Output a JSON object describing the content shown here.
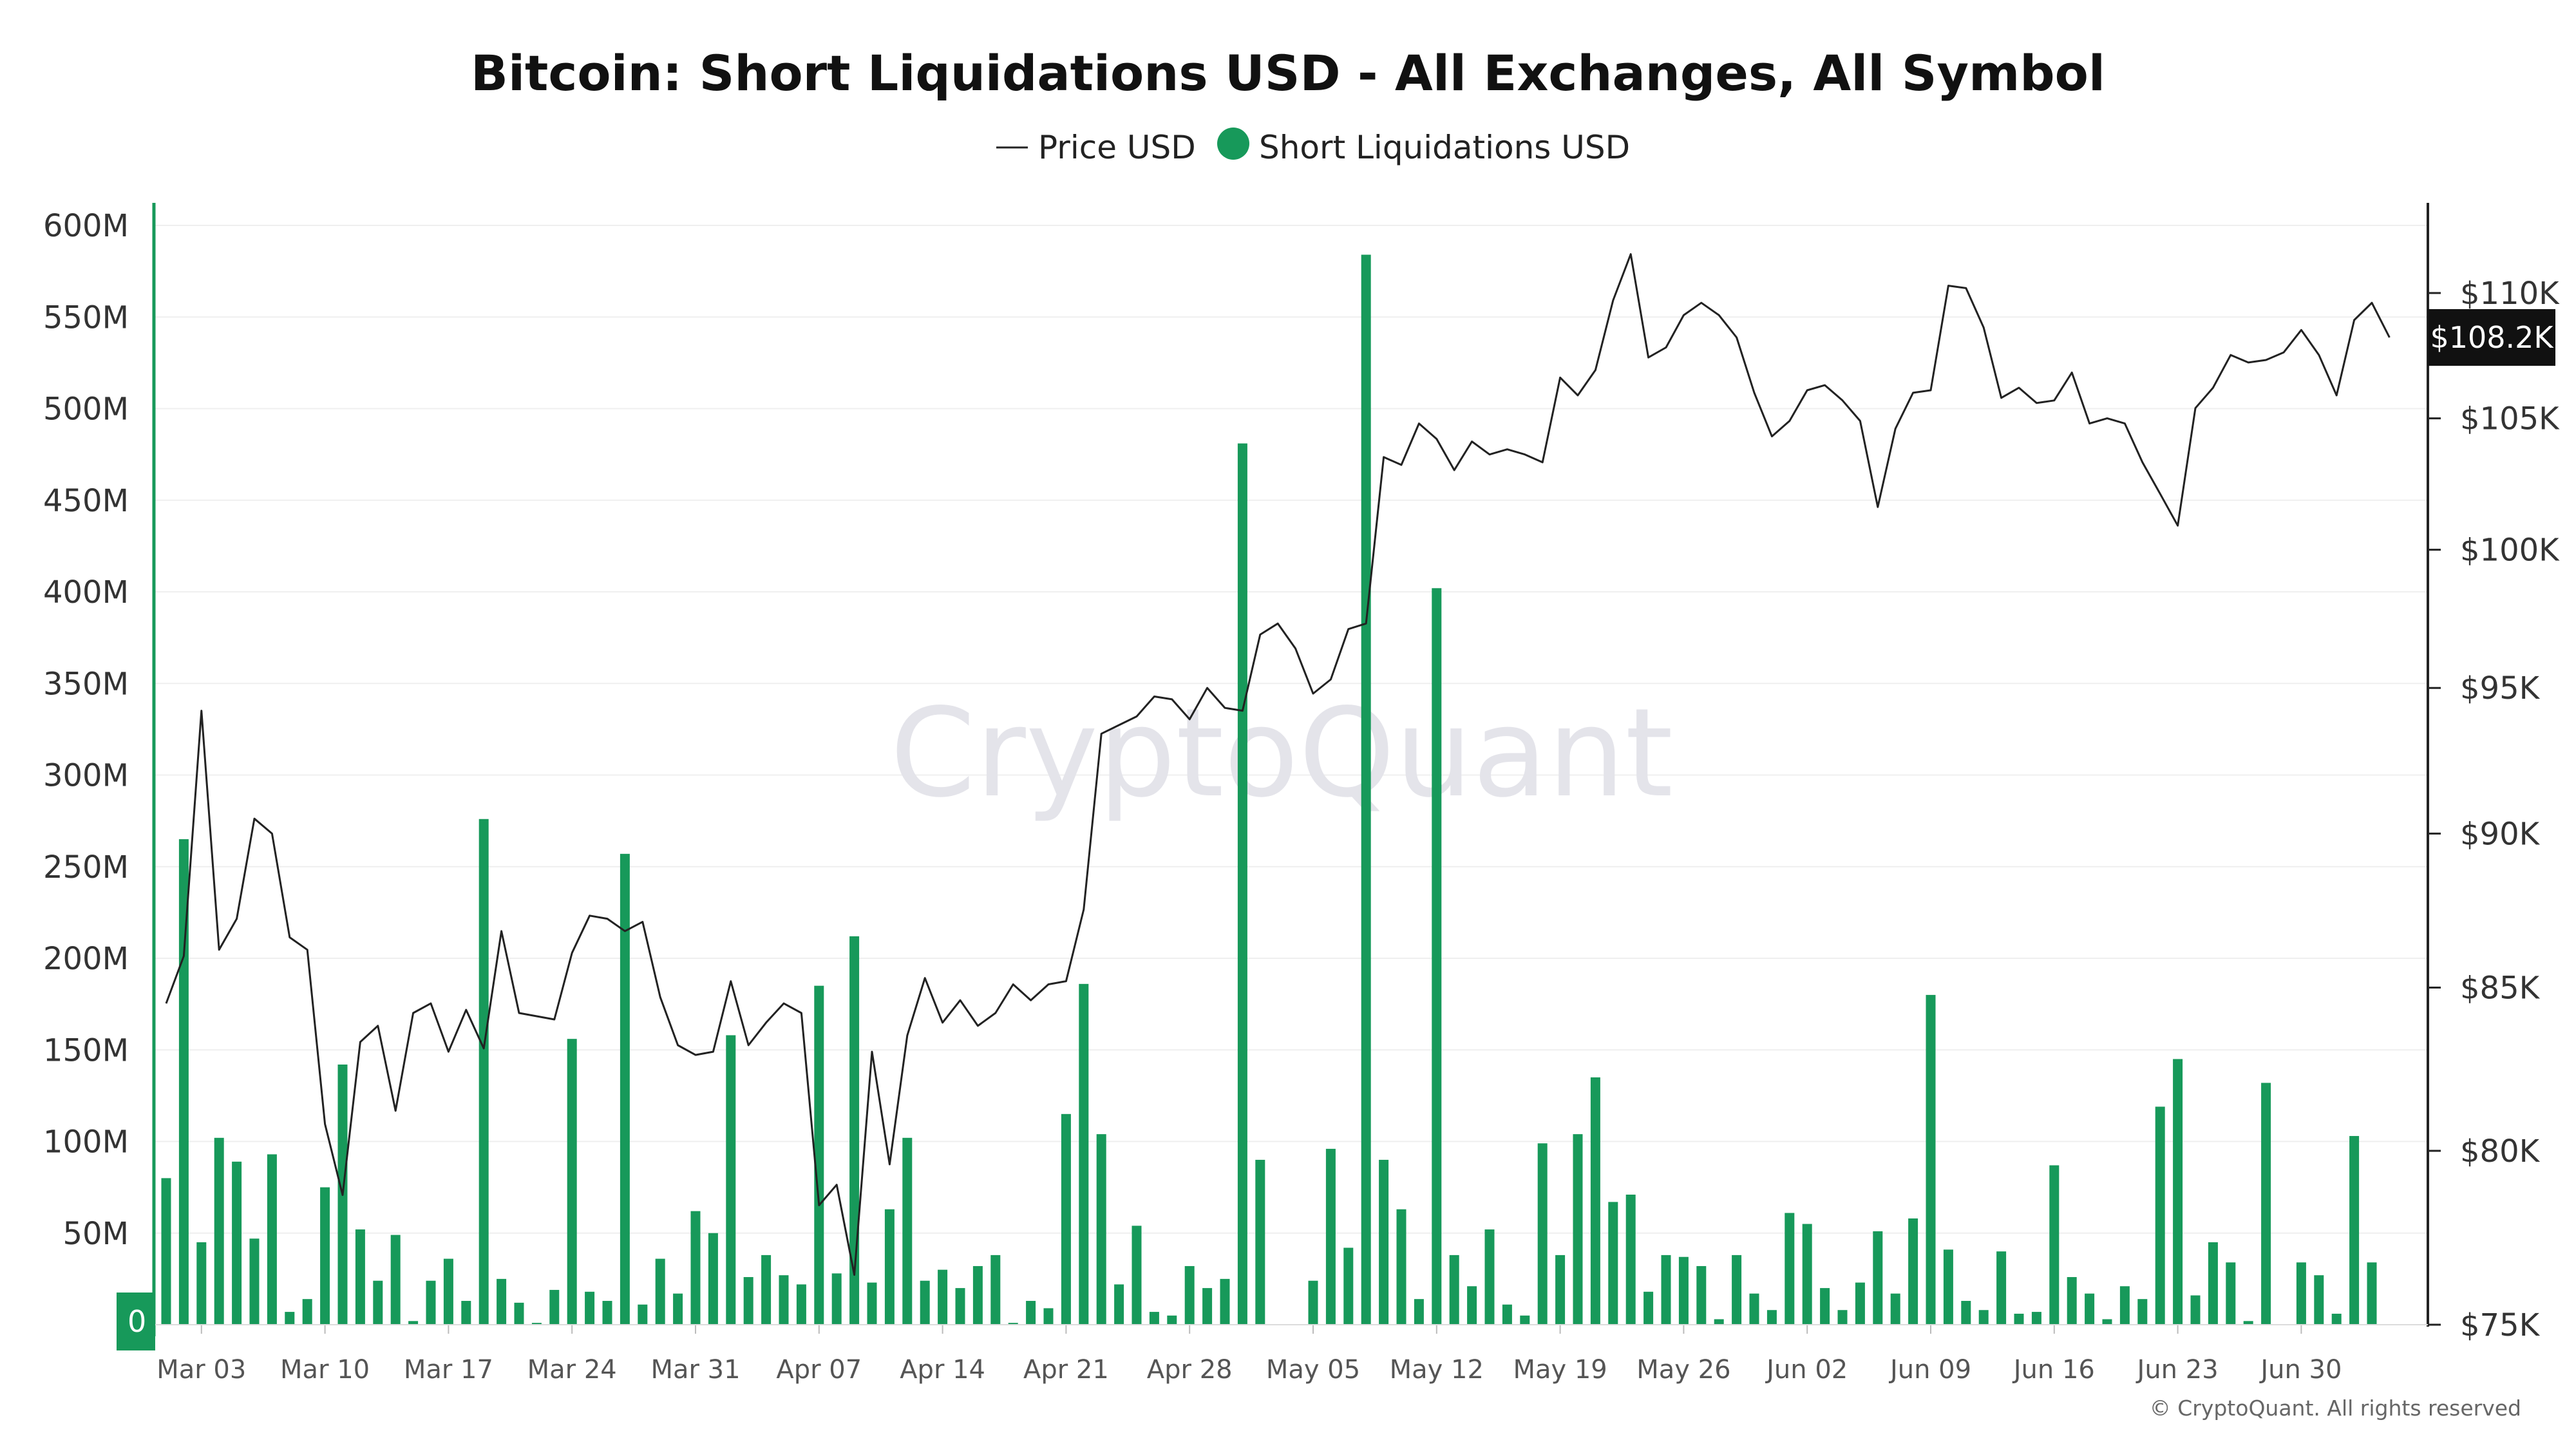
{
  "chart_data": {
    "type": "bar",
    "title": "Bitcoin: Short Liquidations USD - All Exchanges, All Symbol",
    "legend": {
      "placement": "top-center",
      "entries": [
        {
          "label": "Price USD",
          "marker": "line",
          "color": "#222222"
        },
        {
          "label": "Short Liquidations USD",
          "marker": "dot",
          "color": "#17995a"
        }
      ]
    },
    "colors": {
      "bars": "#17995a",
      "price_line": "#222222",
      "left_axis": "#17995a",
      "right_axis": "#222222"
    },
    "x_start_date": "Mar 01",
    "x_ticks": [
      "Mar 03",
      "Mar 10",
      "Mar 17",
      "Mar 24",
      "Mar 31",
      "Apr 07",
      "Apr 14",
      "Apr 21",
      "Apr 28",
      "May 05",
      "May 12",
      "May 19",
      "May 26",
      "Jun 02",
      "Jun 09",
      "Jun 16",
      "Jun 23",
      "Jun 30"
    ],
    "y_left": {
      "ticks": [
        "0",
        "50M",
        "100M",
        "150M",
        "200M",
        "250M",
        "300M",
        "350M",
        "400M",
        "450M",
        "500M",
        "550M",
        "600M"
      ],
      "range": [
        0,
        600
      ]
    },
    "y_right": {
      "ticks": [
        "$75K",
        "$80K",
        "$85K",
        "$90K",
        "$95K",
        "$100K",
        "$105K",
        "$110K"
      ],
      "values": [
        75,
        80,
        85,
        90,
        95,
        100,
        105,
        110
      ],
      "scale": "log",
      "range": [
        75,
        112.5
      ]
    },
    "grid": true,
    "zero_tag": "0",
    "current_price_tag": "$108.2K",
    "current_price": 108.2,
    "series": [
      {
        "name": "Short Liquidations USD",
        "kind": "bar",
        "unit": "USD millions",
        "values": [
          80,
          265,
          45,
          102,
          89,
          47,
          93,
          7,
          14,
          75,
          142,
          52,
          24,
          49,
          2,
          24,
          36,
          13,
          276,
          25,
          12,
          1,
          19,
          156,
          18,
          13,
          257,
          11,
          36,
          17,
          62,
          50,
          158,
          26,
          38,
          27,
          22,
          185,
          28,
          212,
          23,
          63,
          102,
          24,
          30,
          20,
          32,
          38,
          1,
          13,
          9,
          115,
          186,
          104,
          22,
          54,
          7,
          5,
          32,
          20,
          25,
          481,
          90,
          0,
          0,
          24,
          96,
          42,
          584,
          90,
          63,
          14,
          402,
          38,
          21,
          52,
          11,
          5,
          99,
          38,
          104,
          135,
          67,
          71,
          18,
          38,
          37,
          32,
          3,
          38,
          17,
          8,
          61,
          55,
          20,
          8,
          23,
          51,
          17,
          58,
          180,
          41,
          13,
          8,
          40,
          6,
          7,
          87,
          26,
          17,
          3,
          21,
          14,
          119,
          145,
          16,
          45,
          34,
          2,
          132,
          0,
          34,
          27,
          6,
          103,
          34
        ]
      },
      {
        "name": "Price USD",
        "kind": "line",
        "unit": "USD thousands",
        "values": [
          84.5,
          86,
          94.2,
          86.2,
          87.2,
          90.5,
          90,
          86.6,
          86.2,
          80.8,
          78.7,
          83.3,
          83.8,
          81.2,
          84.2,
          84.5,
          83,
          84.3,
          83.1,
          86.8,
          84.2,
          84.1,
          84,
          86.1,
          87.3,
          87.2,
          86.8,
          87.1,
          84.7,
          83.2,
          82.9,
          83,
          85.2,
          83.2,
          83.9,
          84.5,
          84.2,
          78.4,
          79,
          76.4,
          83,
          79.6,
          83.5,
          85.3,
          83.9,
          84.6,
          83.8,
          84.2,
          85.1,
          84.6,
          85.1,
          85.2,
          87.5,
          93.4,
          93.7,
          94,
          94.7,
          94.6,
          93.9,
          95,
          94.3,
          94.2,
          96.9,
          97.3,
          96.4,
          94.8,
          95.3,
          97.1,
          97.3,
          103.5,
          103.2,
          104.8,
          104.2,
          103,
          104.1,
          103.6,
          103.8,
          103.6,
          103.3,
          106.6,
          105.9,
          106.9,
          109.7,
          111.6,
          107.4,
          107.8,
          109.1,
          109.6,
          109.1,
          108.2,
          106,
          104.3,
          104.9,
          106.1,
          106.3,
          105.7,
          104.9,
          101.6,
          104.6,
          106,
          106.1,
          110.3,
          110.2,
          108.6,
          105.8,
          106.2,
          105.6,
          105.7,
          106.8,
          104.8,
          105,
          104.8,
          103.3,
          102.1,
          100.9,
          105.4,
          106.2,
          107.5,
          107.2,
          107.3,
          107.6,
          108.5,
          107.5,
          105.9,
          108.9,
          109.6,
          108.2
        ]
      }
    ]
  },
  "copyright": "© CryptoQuant. All rights reserved",
  "watermark": "CryptoQuant"
}
